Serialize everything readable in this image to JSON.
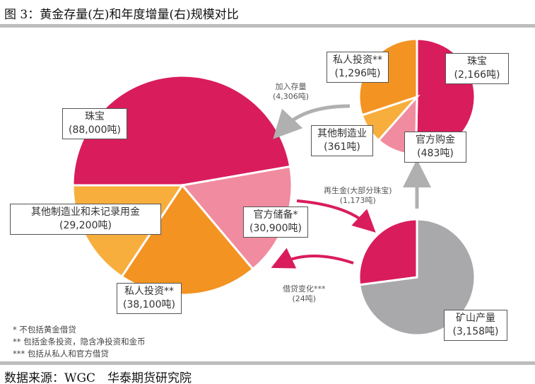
{
  "title": "图 3：黄金存量(左)和年度增量(右)规模对比",
  "source": "数据来源：WGC　华泰期货研究院",
  "footnotes": [
    "* 不包括黄金借贷",
    "** 包括金条投资，隐含净投资和金币",
    "*** 包括从私人和官方借贷"
  ],
  "arrows": {
    "add_stock": [
      "加入存量",
      "(4,306吨)"
    ],
    "recycled": [
      "再生金(大部分珠宝)",
      "(1,173吨)"
    ],
    "lending": [
      "借贷变化***",
      "(24吨)"
    ]
  },
  "colors": {
    "crimson": "#d91c5c",
    "orange": "#f39322",
    "light_orange": "#f8ae3d",
    "pink": "#f08ba0",
    "gray": "#a9a9ab",
    "arrow_gray": "#b0b0b0"
  },
  "chart_data": [
    {
      "type": "pie",
      "unit": "吨",
      "slices": [
        {
          "label": "珠宝",
          "value": 88000,
          "value_label": "(88,000吨)",
          "color": "#d91c5c"
        },
        {
          "label": "官方储备*",
          "value": 30900,
          "value_label": "(30,900吨)",
          "color": "#f08ba0"
        },
        {
          "label": "私人投资**",
          "value": 38100,
          "value_label": "(38,100吨)",
          "color": "#f39322"
        },
        {
          "label": "其他制造业和未记录用金",
          "value": 29200,
          "value_label": "(29,200吨)",
          "color": "#f8ae3d"
        }
      ]
    },
    {
      "type": "pie",
      "unit": "吨",
      "slices": [
        {
          "label": "珠宝",
          "value": 2166,
          "value_label": "(2,166吨)",
          "color": "#d91c5c"
        },
        {
          "label": "官方购金",
          "value": 483,
          "value_label": "(483吨)",
          "color": "#f08ba0"
        },
        {
          "label": "其他制造业",
          "value": 361,
          "value_label": "(361吨)",
          "color": "#f8ae3d"
        },
        {
          "label": "私人投资**",
          "value": 1296,
          "value_label": "(1,296吨)",
          "color": "#f39322"
        }
      ]
    },
    {
      "type": "pie",
      "unit": "吨",
      "slices": [
        {
          "label": "矿山产量",
          "value": 3158,
          "value_label": "(3,158吨)",
          "color": "#a9a9ab"
        },
        {
          "label": "再生金",
          "value": 1173,
          "value_label": "",
          "color": "#d91c5c"
        }
      ]
    }
  ]
}
